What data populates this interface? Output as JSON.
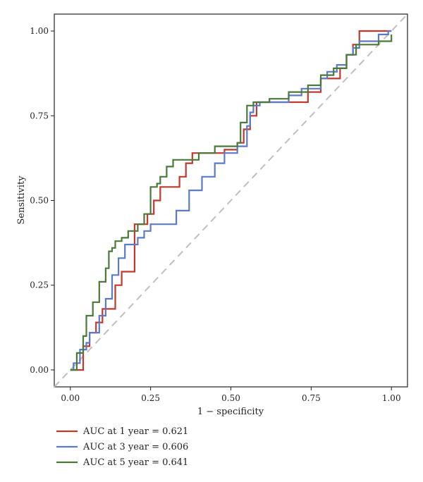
{
  "chart_data": {
    "type": "line",
    "xlabel": "1 − specificity",
    "ylabel": "Sensitivity",
    "xlim": [
      -0.05,
      1.05
    ],
    "ylim": [
      -0.05,
      1.05
    ],
    "x_ticks": [
      "0.00",
      "0.25",
      "0.50",
      "0.75",
      "1.00"
    ],
    "y_ticks": [
      "0.00",
      "0.25",
      "0.50",
      "0.75",
      "1.00"
    ],
    "x_tick_values": [
      0,
      0.25,
      0.5,
      0.75,
      1
    ],
    "y_tick_values": [
      0,
      0.25,
      0.5,
      0.75,
      1
    ],
    "grid": false,
    "legend_position": "bottom",
    "diagonal_reference": true,
    "diagonal_color": "#bfbfbf",
    "series": [
      {
        "name": "AUC at 1 year = 0.621",
        "color": "#c0392b",
        "x": [
          0.0,
          0.04,
          0.04,
          0.06,
          0.06,
          0.08,
          0.08,
          0.1,
          0.1,
          0.14,
          0.14,
          0.16,
          0.16,
          0.2,
          0.2,
          0.24,
          0.24,
          0.26,
          0.26,
          0.28,
          0.28,
          0.34,
          0.34,
          0.36,
          0.36,
          0.38,
          0.38,
          0.48,
          0.48,
          0.52,
          0.52,
          0.54,
          0.54,
          0.56,
          0.56,
          0.58,
          0.58,
          0.6,
          0.6,
          0.74,
          0.74,
          0.78,
          0.78,
          0.84,
          0.84,
          0.86,
          0.86,
          0.88,
          0.88,
          0.9,
          0.9,
          1.0
        ],
        "y": [
          0.0,
          0.0,
          0.07,
          0.07,
          0.11,
          0.11,
          0.14,
          0.14,
          0.18,
          0.18,
          0.25,
          0.25,
          0.29,
          0.29,
          0.43,
          0.43,
          0.46,
          0.46,
          0.5,
          0.5,
          0.54,
          0.54,
          0.57,
          0.57,
          0.61,
          0.61,
          0.64,
          0.64,
          0.65,
          0.65,
          0.67,
          0.67,
          0.71,
          0.71,
          0.75,
          0.75,
          0.79,
          0.79,
          0.79,
          0.79,
          0.82,
          0.82,
          0.86,
          0.86,
          0.89,
          0.89,
          0.93,
          0.93,
          0.96,
          0.96,
          1.0,
          1.0
        ]
      },
      {
        "name": "AUC at 3 year = 0.606",
        "color": "#5b7bc9",
        "x": [
          0.0,
          0.01,
          0.01,
          0.03,
          0.03,
          0.05,
          0.05,
          0.06,
          0.06,
          0.09,
          0.09,
          0.11,
          0.11,
          0.13,
          0.13,
          0.15,
          0.15,
          0.17,
          0.17,
          0.21,
          0.21,
          0.23,
          0.23,
          0.25,
          0.25,
          0.33,
          0.33,
          0.37,
          0.37,
          0.41,
          0.41,
          0.45,
          0.45,
          0.48,
          0.48,
          0.52,
          0.52,
          0.55,
          0.55,
          0.56,
          0.56,
          0.57,
          0.57,
          0.59,
          0.59,
          0.68,
          0.68,
          0.72,
          0.72,
          0.78,
          0.78,
          0.8,
          0.8,
          0.83,
          0.83,
          0.86,
          0.86,
          0.88,
          0.88,
          0.9,
          0.9,
          0.96,
          0.96,
          0.99,
          0.99,
          1.0
        ],
        "y": [
          0.0,
          0.0,
          0.02,
          0.02,
          0.06,
          0.06,
          0.08,
          0.08,
          0.11,
          0.11,
          0.16,
          0.16,
          0.21,
          0.21,
          0.28,
          0.28,
          0.33,
          0.33,
          0.37,
          0.37,
          0.39,
          0.39,
          0.41,
          0.41,
          0.43,
          0.43,
          0.47,
          0.47,
          0.53,
          0.53,
          0.57,
          0.57,
          0.61,
          0.61,
          0.64,
          0.64,
          0.66,
          0.66,
          0.72,
          0.72,
          0.76,
          0.76,
          0.78,
          0.78,
          0.79,
          0.79,
          0.81,
          0.81,
          0.83,
          0.83,
          0.86,
          0.86,
          0.88,
          0.88,
          0.9,
          0.9,
          0.93,
          0.93,
          0.95,
          0.95,
          0.97,
          0.97,
          0.99,
          0.99,
          1.0,
          1.0
        ]
      },
      {
        "name": "AUC at 5 year = 0.641",
        "color": "#4a7a3a",
        "x": [
          0.0,
          0.02,
          0.02,
          0.04,
          0.04,
          0.05,
          0.05,
          0.07,
          0.07,
          0.09,
          0.09,
          0.11,
          0.11,
          0.12,
          0.12,
          0.13,
          0.13,
          0.14,
          0.14,
          0.16,
          0.16,
          0.18,
          0.18,
          0.21,
          0.21,
          0.23,
          0.23,
          0.25,
          0.25,
          0.27,
          0.27,
          0.28,
          0.28,
          0.3,
          0.3,
          0.32,
          0.32,
          0.4,
          0.4,
          0.45,
          0.45,
          0.52,
          0.52,
          0.53,
          0.53,
          0.55,
          0.55,
          0.57,
          0.57,
          0.62,
          0.62,
          0.68,
          0.68,
          0.74,
          0.74,
          0.78,
          0.78,
          0.82,
          0.82,
          0.86,
          0.86,
          0.89,
          0.89,
          0.96,
          0.96,
          1.0,
          1.0
        ],
        "y": [
          0.0,
          0.0,
          0.05,
          0.05,
          0.1,
          0.1,
          0.16,
          0.16,
          0.2,
          0.2,
          0.26,
          0.26,
          0.3,
          0.3,
          0.35,
          0.35,
          0.36,
          0.36,
          0.38,
          0.38,
          0.39,
          0.39,
          0.41,
          0.41,
          0.43,
          0.43,
          0.46,
          0.46,
          0.54,
          0.54,
          0.55,
          0.55,
          0.57,
          0.57,
          0.6,
          0.6,
          0.62,
          0.62,
          0.64,
          0.64,
          0.66,
          0.66,
          0.67,
          0.67,
          0.73,
          0.73,
          0.78,
          0.78,
          0.79,
          0.79,
          0.8,
          0.8,
          0.82,
          0.82,
          0.84,
          0.84,
          0.87,
          0.87,
          0.89,
          0.89,
          0.93,
          0.93,
          0.96,
          0.96,
          0.97,
          0.97,
          0.99
        ]
      }
    ]
  }
}
